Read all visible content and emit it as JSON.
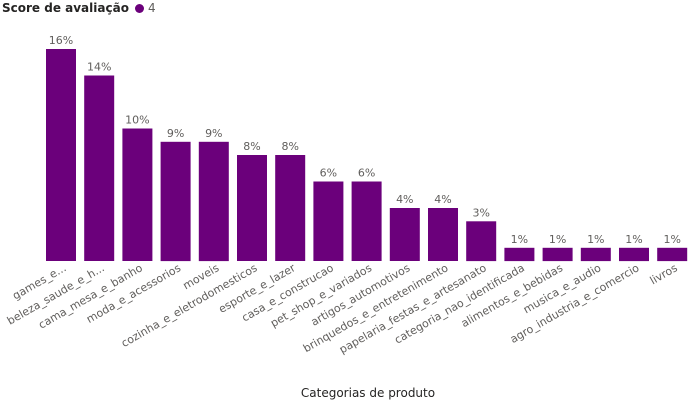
{
  "chart_data": {
    "type": "bar",
    "legend": {
      "title": "Score de avaliação",
      "entries": [
        {
          "name": "4",
          "color": "#6B007B"
        }
      ],
      "position": "top-left"
    },
    "xlabel": "Categorias de produto",
    "ylabel": "",
    "categories": [
      "games_e...",
      "beleza_saude_e_h...",
      "cama_mesa_e_banho",
      "moda_e_acessorios",
      "moveis",
      "cozinha_e_eletrodomesticos",
      "esporte_e_lazer",
      "casa_e_construcao",
      "pet_shop_e_variados",
      "artigos_automotivos",
      "brinquedos_e_entretenimento",
      "papelaria_festas_e_artesanato",
      "categoria_nao_identificada",
      "alimentos_e_bebidas",
      "musica_e_audio",
      "agro_industria_e_comercio",
      "livros"
    ],
    "series": [
      {
        "name": "4",
        "color": "#6B007B",
        "values": [
          16,
          14,
          10,
          9,
          9,
          8,
          8,
          6,
          6,
          4,
          4,
          3,
          1,
          1,
          1,
          1,
          1
        ],
        "value_labels": [
          "16%",
          "14%",
          "10%",
          "9%",
          "9%",
          "8%",
          "8%",
          "6%",
          "6%",
          "4%",
          "4%",
          "3%",
          "1%",
          "1%",
          "1%",
          "1%",
          "1%"
        ]
      }
    ],
    "grid": false,
    "tick_label_rotation_deg": -30
  }
}
